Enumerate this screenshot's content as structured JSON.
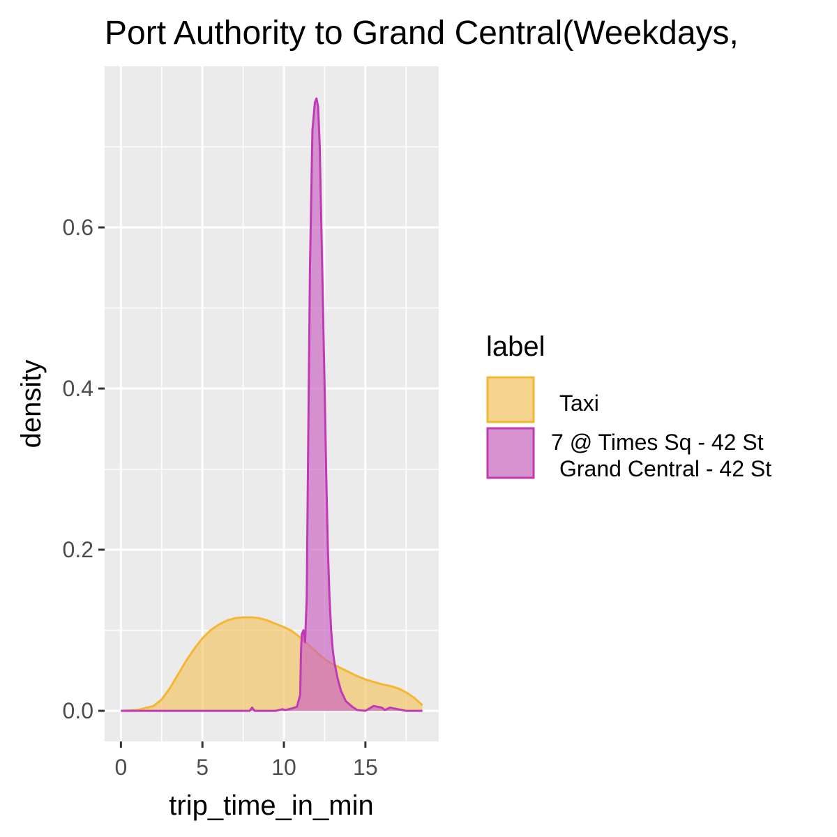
{
  "chart_data": {
    "type": "area",
    "title": "Port Authority to Grand Central(Weekdays,",
    "xlabel": "trip_time_in_min",
    "ylabel": "density",
    "xlim": [
      -1,
      19.5
    ],
    "ylim": [
      -0.038,
      0.8
    ],
    "x_ticks": [
      0,
      5,
      10,
      15
    ],
    "y_ticks": [
      0.0,
      0.2,
      0.4,
      0.6
    ],
    "x_tick_labels": [
      "0",
      "5",
      "10",
      "15"
    ],
    "y_tick_labels": [
      "0.0",
      "0.2",
      "0.4",
      "0.6"
    ],
    "grid": true,
    "panel_background": "#ebebeb",
    "grid_color": "#ffffff",
    "legend": {
      "title": "label",
      "position": "right",
      "entries": [
        {
          "label": "Taxi",
          "fill": "#f5d48f",
          "stroke": "#f5b731"
        },
        {
          "label_lines": [
            "7 @ Times Sq - 42 St",
            "Grand Central - 42 St"
          ],
          "fill": "#d793d0",
          "stroke": "#c13ab5"
        }
      ]
    },
    "series": [
      {
        "name": "Taxi",
        "fill": "#f2c360",
        "fill_opacity": 0.65,
        "stroke": "#f5b731",
        "points": [
          [
            0,
            0.0
          ],
          [
            1,
            0.001
          ],
          [
            2,
            0.006
          ],
          [
            2.5,
            0.014
          ],
          [
            3,
            0.028
          ],
          [
            3.5,
            0.045
          ],
          [
            4,
            0.062
          ],
          [
            4.5,
            0.077
          ],
          [
            5,
            0.09
          ],
          [
            5.5,
            0.1
          ],
          [
            6,
            0.107
          ],
          [
            6.5,
            0.112
          ],
          [
            7,
            0.115
          ],
          [
            7.5,
            0.116
          ],
          [
            8,
            0.116
          ],
          [
            8.5,
            0.115
          ],
          [
            9,
            0.112
          ],
          [
            9.5,
            0.108
          ],
          [
            10,
            0.104
          ],
          [
            10.5,
            0.099
          ],
          [
            11,
            0.091
          ],
          [
            11.5,
            0.082
          ],
          [
            12,
            0.073
          ],
          [
            12.5,
            0.064
          ],
          [
            13,
            0.058
          ],
          [
            13.5,
            0.053
          ],
          [
            14,
            0.048
          ],
          [
            14.5,
            0.043
          ],
          [
            15,
            0.039
          ],
          [
            15.5,
            0.036
          ],
          [
            16,
            0.033
          ],
          [
            16.5,
            0.031
          ],
          [
            17,
            0.028
          ],
          [
            17.5,
            0.023
          ],
          [
            18,
            0.016
          ],
          [
            18.5,
            0.007
          ]
        ]
      },
      {
        "name": "7 @ Times Sq - 42 St Grand Central - 42 St",
        "fill": "#c960c2",
        "fill_opacity": 0.65,
        "stroke": "#c13ab5",
        "points": [
          [
            0,
            0.0
          ],
          [
            7.9,
            0.0
          ],
          [
            8.05,
            0.004
          ],
          [
            8.2,
            0.0
          ],
          [
            9.5,
            0.0
          ],
          [
            9.9,
            0.002
          ],
          [
            10.1,
            0.001
          ],
          [
            10.5,
            0.003
          ],
          [
            10.8,
            0.005
          ],
          [
            11.0,
            0.02
          ],
          [
            11.05,
            0.075
          ],
          [
            11.1,
            0.095
          ],
          [
            11.2,
            0.1
          ],
          [
            11.3,
            0.085
          ],
          [
            11.4,
            0.14
          ],
          [
            11.5,
            0.35
          ],
          [
            11.6,
            0.55
          ],
          [
            11.75,
            0.72
          ],
          [
            11.9,
            0.755
          ],
          [
            12.0,
            0.76
          ],
          [
            12.1,
            0.75
          ],
          [
            12.2,
            0.7
          ],
          [
            12.3,
            0.6
          ],
          [
            12.4,
            0.5
          ],
          [
            12.5,
            0.4
          ],
          [
            12.6,
            0.29
          ],
          [
            12.7,
            0.2
          ],
          [
            12.8,
            0.14
          ],
          [
            12.9,
            0.1
          ],
          [
            13.0,
            0.075
          ],
          [
            13.1,
            0.06
          ],
          [
            13.3,
            0.04
          ],
          [
            13.5,
            0.025
          ],
          [
            13.8,
            0.012
          ],
          [
            14.2,
            0.005
          ],
          [
            14.5,
            0.001
          ],
          [
            15,
            0.0
          ],
          [
            15.5,
            0.006
          ],
          [
            16,
            0.004
          ],
          [
            16.2,
            0.001
          ],
          [
            16.5,
            0.004
          ],
          [
            17,
            0.002
          ],
          [
            17.5,
            0.0
          ],
          [
            18.5,
            0.0
          ]
        ]
      }
    ]
  }
}
